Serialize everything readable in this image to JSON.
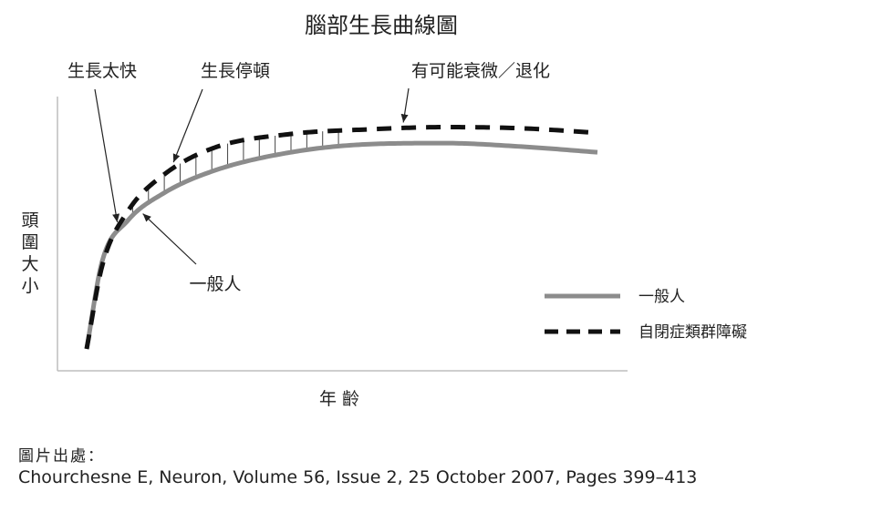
{
  "chart_data": {
    "type": "line",
    "title": "腦部生長曲線圖",
    "xlabel": "年 齡",
    "ylabel": "頭圍大小",
    "axis_ticks": "none",
    "grid": false,
    "legend_position": "right",
    "x": [
      0.0,
      0.03,
      0.08,
      0.15,
      0.25,
      0.4,
      0.55,
      0.7,
      0.85,
      1.0
    ],
    "series": [
      {
        "name": "一般人",
        "style": "solid",
        "color": "#8c8c8c",
        "values": [
          0.0,
          0.38,
          0.56,
          0.68,
          0.78,
          0.86,
          0.895,
          0.9,
          0.885,
          0.86
        ]
      },
      {
        "name": "自閉症類群障礙",
        "style": "dashed",
        "color": "#111111",
        "values": [
          0.0,
          0.36,
          0.6,
          0.76,
          0.88,
          0.94,
          0.96,
          0.97,
          0.965,
          0.945
        ]
      }
    ],
    "annotations": [
      {
        "text": "生長太快",
        "x": 0.06
      },
      {
        "text": "生長停頓",
        "x": 0.17
      },
      {
        "text": "有可能衰微／退化",
        "x": 0.62
      },
      {
        "text": "一般人",
        "x": 0.11
      }
    ]
  },
  "source": {
    "label": "圖片出處：",
    "citation": "Chourchesne E, Neuron, Volume 56, Issue 2, 25 October 2007, Pages 399–413"
  }
}
